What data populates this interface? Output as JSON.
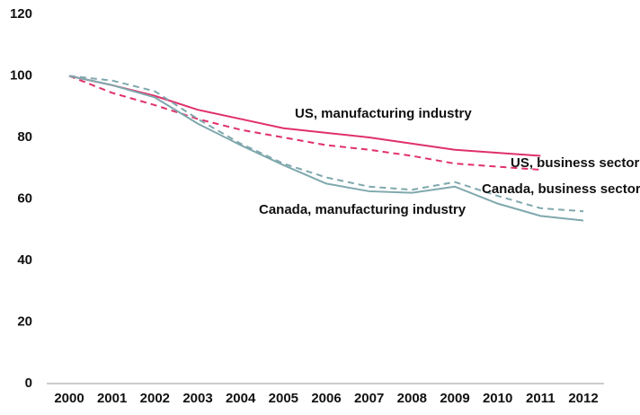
{
  "chart_data": {
    "type": "line",
    "categories": [
      "2000",
      "2001",
      "2002",
      "2003",
      "2004",
      "2005",
      "2006",
      "2007",
      "2008",
      "2009",
      "2010",
      "2011",
      "2012"
    ],
    "series": [
      {
        "name": "US, manufacturing industry",
        "color": "#e0306a",
        "dash": false,
        "values": [
          100,
          97,
          93.5,
          89,
          86,
          83,
          81.5,
          80,
          78,
          76,
          75,
          74,
          null
        ]
      },
      {
        "name": "US, business sector",
        "color": "#e0306a",
        "dash": true,
        "values": [
          100,
          94.5,
          90.5,
          86,
          82.5,
          80,
          77.5,
          76,
          74,
          71.5,
          70.5,
          69.5,
          null
        ]
      },
      {
        "name": "Canada, business sector",
        "color": "#7fa8ad",
        "dash": true,
        "values": [
          100,
          98.5,
          95,
          86,
          78,
          71.5,
          67,
          64,
          63,
          65.5,
          61,
          57,
          56
        ]
      },
      {
        "name": "Canada, manufacturing industry",
        "color": "#7fa8ad",
        "dash": false,
        "values": [
          100,
          97,
          93,
          84.5,
          77.5,
          71,
          65,
          62.5,
          62,
          64,
          58.5,
          54.5,
          53
        ]
      }
    ],
    "ylim": [
      0,
      120
    ],
    "yticks": [
      0,
      20,
      40,
      60,
      80,
      100,
      120
    ]
  }
}
